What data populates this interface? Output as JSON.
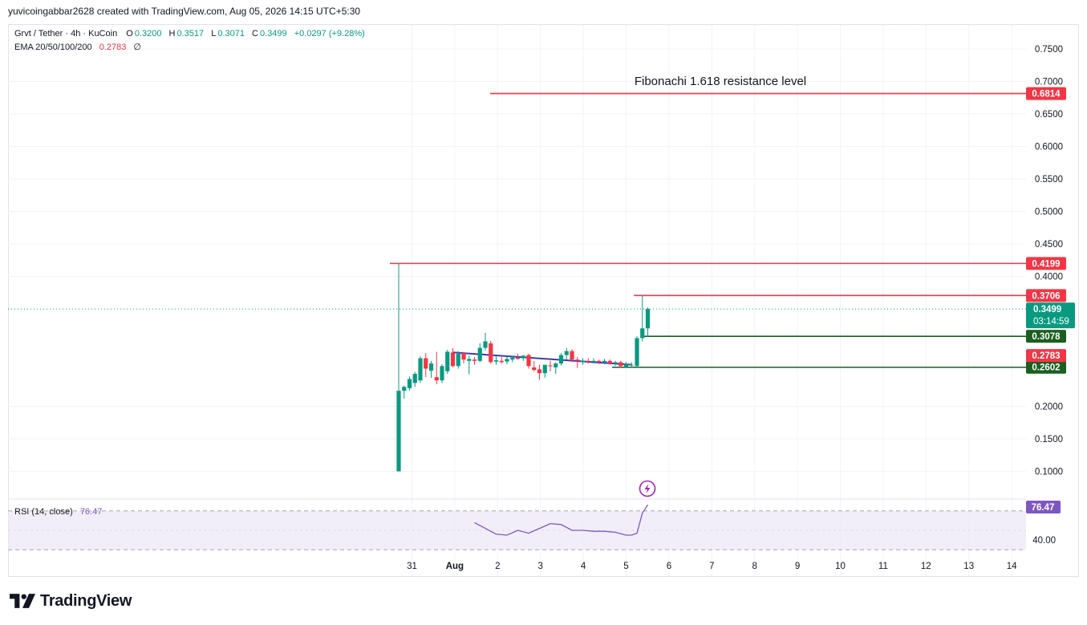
{
  "caption": "yuvicoingabbar2628 created with TradingView.com, Aug 05, 2026 14:15 UTC+5:30",
  "legend": {
    "symbol": "Grvt / Tether · 4h · KuCoin",
    "o_label": "O",
    "o_value": "0.3200",
    "h_label": "H",
    "h_value": "0.3517",
    "l_label": "L",
    "l_value": "0.3071",
    "c_label": "C",
    "c_value": "0.3499",
    "change": "+0.0297 (+9.28%)",
    "ema_label": "EMA 20/50/100/200",
    "ema_value": "0.2783",
    "ema_extra": "∅",
    "rsi_label": "RSI (14, close)",
    "rsi_value": "76.47"
  },
  "brand": "TradingView",
  "colors": {
    "up": "#089981",
    "down": "#f23645",
    "resistance": "#f23645",
    "support": "#1b5e20",
    "trendline": "#3f3bb0",
    "rsi": "#7e57c2",
    "rsi_band": "#ede7f6"
  },
  "chart_data": {
    "type": "candlestick",
    "symbol": "Grvt / Tether",
    "interval": "4h",
    "exchange": "KuCoin",
    "y_ticks": [
      "0.7500",
      "0.7000",
      "0.6500",
      "0.6000",
      "0.5500",
      "0.5000",
      "0.4500",
      "0.4000",
      "0.2000",
      "0.1500",
      "0.1000"
    ],
    "x_ticks": [
      "31",
      "Aug",
      "2",
      "3",
      "4",
      "5",
      "6",
      "7",
      "8",
      "9",
      "10",
      "11",
      "12",
      "13",
      "14"
    ],
    "ylim": [
      0.077,
      0.777
    ],
    "candles": [
      {
        "t": 0,
        "o": 0.1,
        "h": 0.42,
        "l": 0.1,
        "c": 0.224
      },
      {
        "t": 1,
        "o": 0.224,
        "h": 0.232,
        "l": 0.212,
        "c": 0.23
      },
      {
        "t": 2,
        "o": 0.228,
        "h": 0.246,
        "l": 0.224,
        "c": 0.242
      },
      {
        "t": 3,
        "o": 0.236,
        "h": 0.253,
        "l": 0.23,
        "c": 0.25
      },
      {
        "t": 4,
        "o": 0.24,
        "h": 0.277,
        "l": 0.236,
        "c": 0.274
      },
      {
        "t": 5,
        "o": 0.274,
        "h": 0.282,
        "l": 0.245,
        "c": 0.258
      },
      {
        "t": 6,
        "o": 0.255,
        "h": 0.27,
        "l": 0.244,
        "c": 0.266
      },
      {
        "t": 7,
        "o": 0.245,
        "h": 0.284,
        "l": 0.234,
        "c": 0.24
      },
      {
        "t": 8,
        "o": 0.24,
        "h": 0.265,
        "l": 0.236,
        "c": 0.262
      },
      {
        "t": 9,
        "o": 0.254,
        "h": 0.287,
        "l": 0.25,
        "c": 0.284
      },
      {
        "t": 10,
        "o": 0.283,
        "h": 0.29,
        "l": 0.26,
        "c": 0.262
      },
      {
        "t": 11,
        "o": 0.262,
        "h": 0.285,
        "l": 0.258,
        "c": 0.281
      },
      {
        "t": 12,
        "o": 0.282,
        "h": 0.284,
        "l": 0.266,
        "c": 0.272
      },
      {
        "t": 13,
        "o": 0.27,
        "h": 0.278,
        "l": 0.249,
        "c": 0.273
      },
      {
        "t": 14,
        "o": 0.272,
        "h": 0.276,
        "l": 0.264,
        "c": 0.27
      },
      {
        "t": 15,
        "o": 0.27,
        "h": 0.297,
        "l": 0.268,
        "c": 0.29
      },
      {
        "t": 16,
        "o": 0.29,
        "h": 0.313,
        "l": 0.286,
        "c": 0.3
      },
      {
        "t": 17,
        "o": 0.297,
        "h": 0.301,
        "l": 0.266,
        "c": 0.268
      },
      {
        "t": 18,
        "o": 0.269,
        "h": 0.277,
        "l": 0.264,
        "c": 0.271
      },
      {
        "t": 19,
        "o": 0.27,
        "h": 0.276,
        "l": 0.266,
        "c": 0.268
      },
      {
        "t": 20,
        "o": 0.269,
        "h": 0.276,
        "l": 0.265,
        "c": 0.273
      },
      {
        "t": 21,
        "o": 0.272,
        "h": 0.278,
        "l": 0.268,
        "c": 0.275
      },
      {
        "t": 22,
        "o": 0.275,
        "h": 0.281,
        "l": 0.272,
        "c": 0.273
      },
      {
        "t": 23,
        "o": 0.274,
        "h": 0.279,
        "l": 0.27,
        "c": 0.278
      },
      {
        "t": 24,
        "o": 0.279,
        "h": 0.281,
        "l": 0.258,
        "c": 0.262
      },
      {
        "t": 25,
        "o": 0.26,
        "h": 0.27,
        "l": 0.254,
        "c": 0.256
      },
      {
        "t": 26,
        "o": 0.257,
        "h": 0.264,
        "l": 0.241,
        "c": 0.251
      },
      {
        "t": 27,
        "o": 0.251,
        "h": 0.264,
        "l": 0.244,
        "c": 0.264
      },
      {
        "t": 28,
        "o": 0.263,
        "h": 0.27,
        "l": 0.254,
        "c": 0.262
      },
      {
        "t": 29,
        "o": 0.26,
        "h": 0.268,
        "l": 0.25,
        "c": 0.266
      },
      {
        "t": 30,
        "o": 0.266,
        "h": 0.282,
        "l": 0.263,
        "c": 0.279
      },
      {
        "t": 31,
        "o": 0.279,
        "h": 0.29,
        "l": 0.272,
        "c": 0.285
      },
      {
        "t": 32,
        "o": 0.285,
        "h": 0.288,
        "l": 0.268,
        "c": 0.272
      },
      {
        "t": 33,
        "o": 0.272,
        "h": 0.276,
        "l": 0.259,
        "c": 0.27
      },
      {
        "t": 34,
        "o": 0.268,
        "h": 0.274,
        "l": 0.264,
        "c": 0.27
      },
      {
        "t": 35,
        "o": 0.27,
        "h": 0.274,
        "l": 0.266,
        "c": 0.269
      },
      {
        "t": 36,
        "o": 0.269,
        "h": 0.274,
        "l": 0.266,
        "c": 0.27
      },
      {
        "t": 37,
        "o": 0.27,
        "h": 0.272,
        "l": 0.265,
        "c": 0.268
      },
      {
        "t": 38,
        "o": 0.268,
        "h": 0.273,
        "l": 0.265,
        "c": 0.27
      },
      {
        "t": 39,
        "o": 0.27,
        "h": 0.272,
        "l": 0.264,
        "c": 0.266
      },
      {
        "t": 40,
        "o": 0.266,
        "h": 0.27,
        "l": 0.262,
        "c": 0.268
      },
      {
        "t": 41,
        "o": 0.268,
        "h": 0.27,
        "l": 0.26,
        "c": 0.262
      },
      {
        "t": 42,
        "o": 0.261,
        "h": 0.268,
        "l": 0.26,
        "c": 0.265
      },
      {
        "t": 43,
        "o": 0.263,
        "h": 0.268,
        "l": 0.26,
        "c": 0.264
      },
      {
        "t": 44,
        "o": 0.262,
        "h": 0.308,
        "l": 0.261,
        "c": 0.305
      },
      {
        "t": 45,
        "o": 0.305,
        "h": 0.371,
        "l": 0.3,
        "c": 0.32
      },
      {
        "t": 46,
        "o": 0.32,
        "h": 0.352,
        "l": 0.307,
        "c": 0.35
      }
    ],
    "ema": 0.2783,
    "last_price": 0.3499,
    "countdown": "03:14:59",
    "levels": [
      {
        "name": "fib-1618",
        "value": 0.6814,
        "label": "0.6814",
        "kind": "resistance",
        "note": "Fibonachi 1.618 resistance level"
      },
      {
        "name": "resistance-0.4199",
        "value": 0.4199,
        "label": "0.4199",
        "kind": "resistance"
      },
      {
        "name": "resistance-0.3706",
        "value": 0.3706,
        "label": "0.3706",
        "kind": "resistance"
      },
      {
        "name": "support-0.3078",
        "value": 0.3078,
        "label": "0.3078",
        "kind": "support"
      },
      {
        "name": "support-0.2602",
        "value": 0.2602,
        "label": "0.2602",
        "kind": "support"
      }
    ],
    "ema_label": "0.2783",
    "trendline": {
      "from": {
        "t": 10,
        "v": 0.283
      },
      "to": {
        "t": 43,
        "v": 0.264
      }
    },
    "rsi": {
      "period": 14,
      "value": 76.47,
      "value_label": "76.47",
      "tick_label": "40.00",
      "bands": [
        70,
        30
      ],
      "points": [
        {
          "t": 14,
          "v": 58
        },
        {
          "t": 16,
          "v": 52
        },
        {
          "t": 18,
          "v": 46
        },
        {
          "t": 20,
          "v": 45
        },
        {
          "t": 22,
          "v": 50
        },
        {
          "t": 24,
          "v": 47
        },
        {
          "t": 26,
          "v": 52
        },
        {
          "t": 28,
          "v": 57
        },
        {
          "t": 30,
          "v": 56
        },
        {
          "t": 32,
          "v": 50
        },
        {
          "t": 34,
          "v": 50
        },
        {
          "t": 36,
          "v": 49
        },
        {
          "t": 38,
          "v": 49
        },
        {
          "t": 40,
          "v": 48
        },
        {
          "t": 42,
          "v": 45
        },
        {
          "t": 43,
          "v": 45
        },
        {
          "t": 44,
          "v": 47
        },
        {
          "t": 45,
          "v": 68
        },
        {
          "t": 46,
          "v": 76.47
        }
      ]
    }
  }
}
